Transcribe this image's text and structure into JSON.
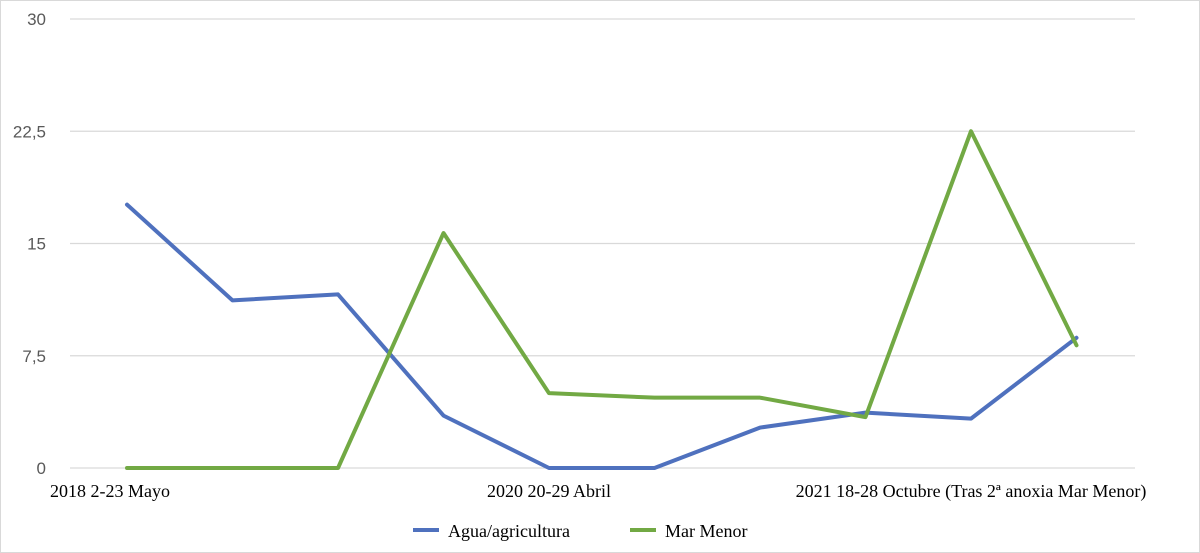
{
  "chart_data": {
    "type": "line",
    "title": "",
    "xlabel": "",
    "ylabel": "",
    "ylim": [
      0,
      30
    ],
    "y_ticks": [
      "0",
      "7,5",
      "15",
      "22,5",
      "30"
    ],
    "y_tick_values": [
      0,
      7.5,
      15,
      22.5,
      30
    ],
    "x_count": 10,
    "x_labels": [
      {
        "index": 0,
        "text": "2018 2-23 Mayo"
      },
      {
        "index": 4,
        "text": "2020 20-29 Abril"
      },
      {
        "index": 8,
        "text": "2021 18-28 Octubre (Tras 2ª anoxia Mar Menor)"
      }
    ],
    "grid": true,
    "legend_position": "bottom",
    "series": [
      {
        "name": "Agua/agricultura",
        "color": "#4f71be",
        "values": [
          17.6,
          11.2,
          11.6,
          3.5,
          0,
          0,
          2.7,
          3.7,
          3.3,
          8.7
        ]
      },
      {
        "name": "Mar Menor",
        "color": "#72a944",
        "values": [
          0,
          0,
          0,
          15.7,
          5.0,
          4.7,
          4.7,
          3.4,
          22.5,
          8.2
        ]
      }
    ]
  }
}
